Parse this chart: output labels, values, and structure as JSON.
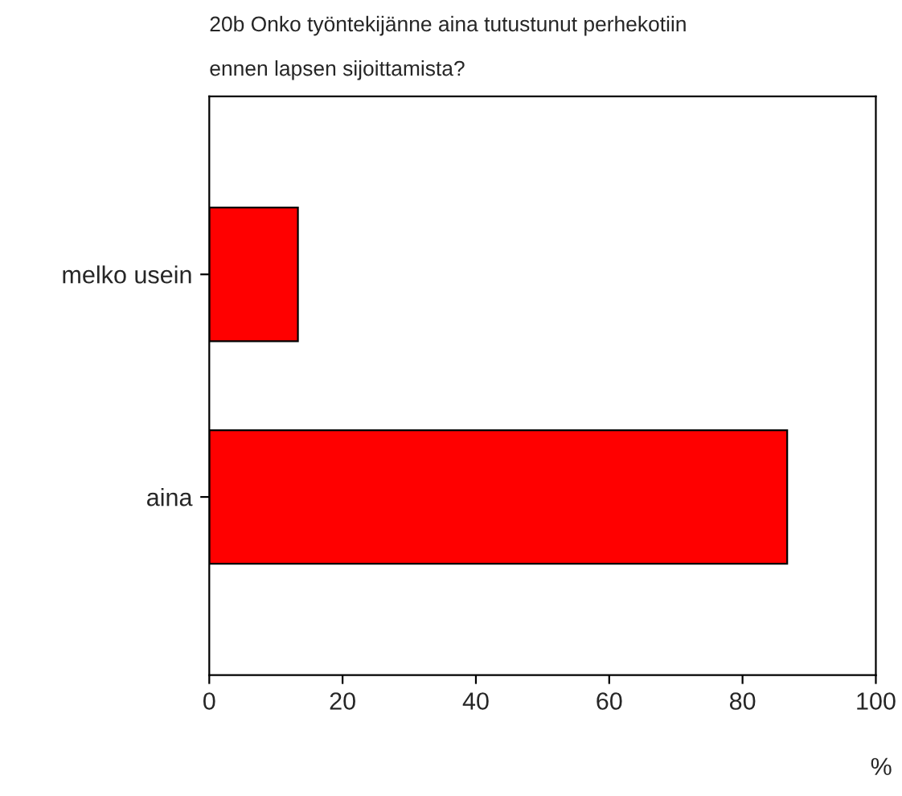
{
  "chart_data": {
    "type": "bar",
    "orientation": "horizontal",
    "title": "20b Onko työntekijänne aina tutustunut perhekotiin\nennen lapsen sijoittamista?",
    "xlabel": "%",
    "categories": [
      "melko usein",
      "aina"
    ],
    "series": [
      {
        "color": "#ff0000",
        "values": [
          13.3,
          86.7
        ]
      }
    ],
    "xlim": [
      0,
      100
    ],
    "xticks": [
      0,
      20,
      40,
      60,
      80,
      100
    ],
    "grid": false,
    "legend": false
  }
}
